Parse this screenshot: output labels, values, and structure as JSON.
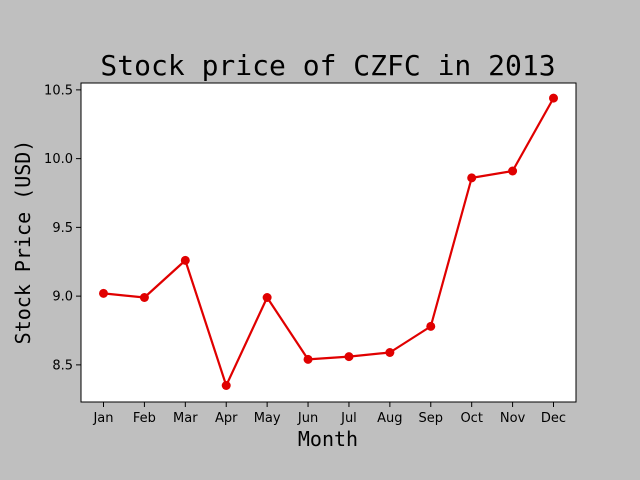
{
  "chart_data": {
    "type": "line",
    "title": "Stock price of CZFC in 2013",
    "xlabel": "Month",
    "ylabel": "Stock Price (USD)",
    "categories": [
      "Jan",
      "Feb",
      "Mar",
      "Apr",
      "May",
      "Jun",
      "Jul",
      "Aug",
      "Sep",
      "Oct",
      "Nov",
      "Dec"
    ],
    "values": [
      9.02,
      8.99,
      9.26,
      8.35,
      8.99,
      8.54,
      8.56,
      8.59,
      8.78,
      9.86,
      9.91,
      10.44
    ],
    "ylim": [
      8.23,
      10.55
    ],
    "yticks": [
      "8.5",
      "9.0",
      "9.5",
      "10.0",
      "10.5"
    ],
    "grid": false,
    "legend": "none",
    "line_color": "#e00000",
    "background_color": "#bfbfbf",
    "plot_background_color": "#ffffff"
  }
}
